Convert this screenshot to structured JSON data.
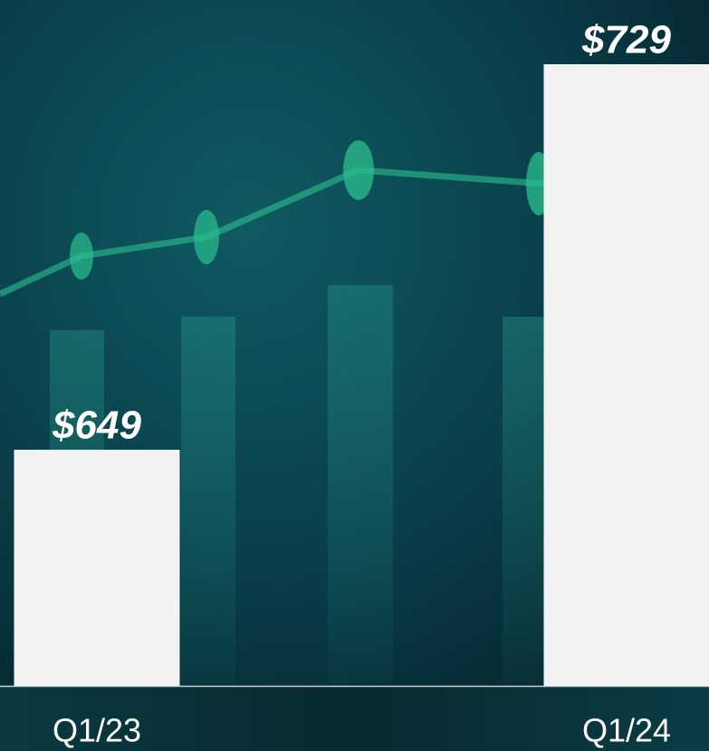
{
  "chart_data": {
    "type": "bar",
    "categories": [
      "Q1/23",
      "Q1/24"
    ],
    "values": [
      649,
      729
    ],
    "value_labels": [
      "$649",
      "$729"
    ],
    "color": "#f2f2f2",
    "ylim": [
      600,
      729
    ]
  }
}
